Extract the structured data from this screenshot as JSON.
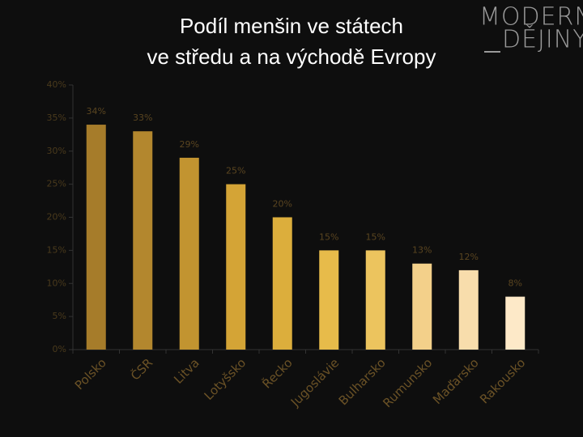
{
  "logo": {
    "line1": "MODERNÍ",
    "line2": "DĚJINY"
  },
  "chart_data": {
    "type": "bar",
    "title": [
      "Podíl menšin ve státech",
      "ve středu a na východě Evropy"
    ],
    "categories": [
      "Polsko",
      "ČSR",
      "Litva",
      "Lotyšsko",
      "Řecko",
      "Jugoslávie",
      "Bulharsko",
      "Rumunsko",
      "Maďarsko",
      "Rakousko"
    ],
    "values": [
      34,
      33,
      29,
      25,
      20,
      15,
      15,
      13,
      12,
      8
    ],
    "value_labels": [
      "34%",
      "33%",
      "29%",
      "25%",
      "20%",
      "15%",
      "15%",
      "13%",
      "12%",
      "8%"
    ],
    "colors": [
      "#a67c2a",
      "#b3872e",
      "#c29430",
      "#d4a436",
      "#dcae3c",
      "#e7bb4a",
      "#ecc45e",
      "#f3d08a",
      "#f8ddac",
      "#fde9c8"
    ],
    "ylim": [
      0,
      40
    ],
    "yticks": [
      {
        "value": 0,
        "label": "0%"
      },
      {
        "value": 5,
        "label": "5%"
      },
      {
        "value": 10,
        "label": "10%"
      },
      {
        "value": 15,
        "label": "15%"
      },
      {
        "value": 20,
        "label": "20%"
      },
      {
        "value": 25,
        "label": "25%"
      },
      {
        "value": 30,
        "label": "30%"
      },
      {
        "value": 35,
        "label": "35%"
      },
      {
        "value": 40,
        "label": "40%"
      }
    ]
  }
}
